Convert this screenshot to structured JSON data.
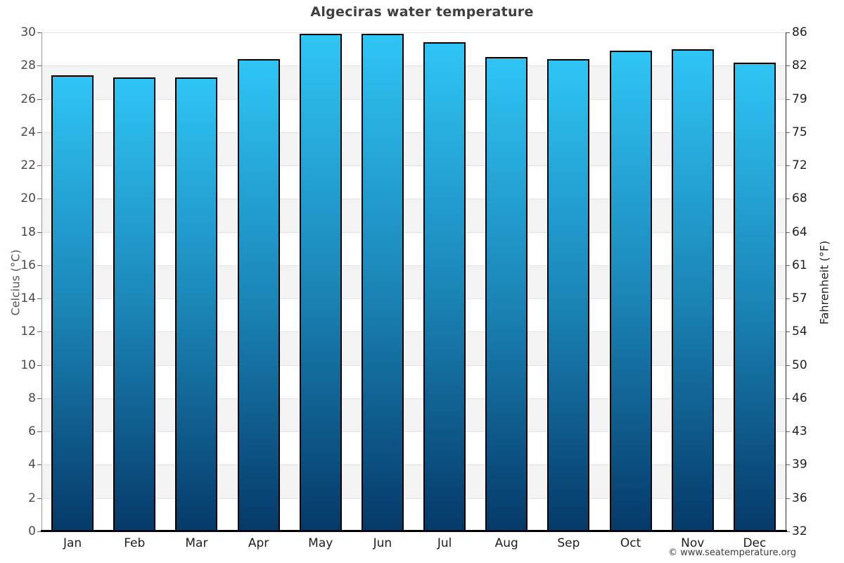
{
  "header": {
    "title": "Algeciras water temperature"
  },
  "footer": {
    "copyright": "© www.seatemperature.org"
  },
  "axes": {
    "left_title": "Celcius (°C)",
    "right_title": "Fahrenheit (°F)"
  },
  "chart_data": {
    "type": "bar",
    "title": "Algeciras water temperature",
    "categories": [
      "Jan",
      "Feb",
      "Mar",
      "Apr",
      "May",
      "Jun",
      "Jul",
      "Aug",
      "Sep",
      "Oct",
      "Nov",
      "Dec"
    ],
    "values": [
      27.4,
      27.3,
      27.3,
      28.4,
      29.9,
      29.9,
      29.4,
      28.5,
      28.4,
      28.9,
      29.0,
      28.2
    ],
    "unit": "°C",
    "ylabel": "Celcius (°C)",
    "y2label": "Fahrenheit (°F)",
    "ylim": [
      0,
      30
    ],
    "yticks_celsius": [
      30,
      28,
      26,
      24,
      22,
      20,
      18,
      16,
      14,
      12,
      10,
      8,
      6,
      4,
      2,
      0
    ],
    "yticks_fahrenheit": [
      86,
      82,
      79,
      75,
      72,
      68,
      64,
      61,
      57,
      54,
      50,
      46,
      43,
      39,
      36,
      32
    ],
    "legend": "none",
    "grid": "horizontal gridlines every 2°C with alternating shaded bands",
    "colors": {
      "bar_top": "#2fc5f5",
      "bar_bottom": "#053968",
      "bar_border": "#000000",
      "band_alt": "#f3f3f3",
      "gridline": "#e4e4e4",
      "title_text": "#3f3f3f",
      "axis_text": "#4a4a4a"
    }
  }
}
